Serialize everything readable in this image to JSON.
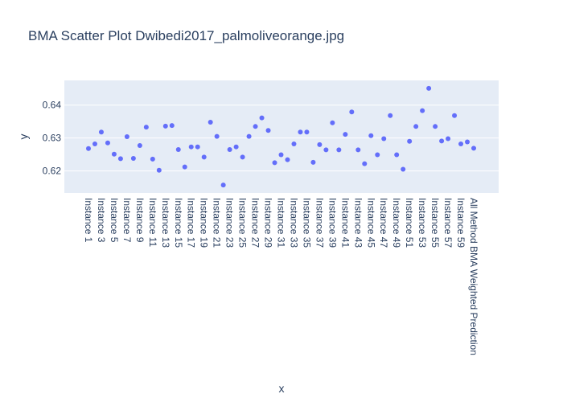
{
  "chart_data": {
    "type": "scatter",
    "title": "BMA Scatter Plot Dwibedi2017_palmoliveorange.jpg",
    "xlabel": "x",
    "ylabel": "y",
    "x": [
      "Instance 1",
      "Instance 2",
      "Instance 3",
      "Instance 4",
      "Instance 5",
      "Instance 6",
      "Instance 7",
      "Instance 8",
      "Instance 9",
      "Instance 10",
      "Instance 11",
      "Instance 12",
      "Instance 13",
      "Instance 14",
      "Instance 15",
      "Instance 16",
      "Instance 17",
      "Instance 18",
      "Instance 19",
      "Instance 20",
      "Instance 21",
      "Instance 22",
      "Instance 23",
      "Instance 24",
      "Instance 25",
      "Instance 26",
      "Instance 27",
      "Instance 28",
      "Instance 29",
      "Instance 30",
      "Instance 31",
      "Instance 32",
      "Instance 33",
      "Instance 34",
      "Instance 35",
      "Instance 36",
      "Instance 37",
      "Instance 38",
      "Instance 39",
      "Instance 40",
      "Instance 41",
      "Instance 42",
      "Instance 43",
      "Instance 44",
      "Instance 45",
      "Instance 46",
      "Instance 47",
      "Instance 48",
      "Instance 49",
      "Instance 50",
      "Instance 51",
      "Instance 52",
      "Instance 53",
      "Instance 54",
      "Instance 55",
      "Instance 56",
      "Instance 57",
      "Instance 58",
      "Instance 59",
      "Instance 60",
      "All Method BMA Weighted Prediction"
    ],
    "tick_labels": [
      "Instance 1",
      "Instance 3",
      "Instance 5",
      "Instance 7",
      "Instance 9",
      "Instance 11",
      "Instance 13",
      "Instance 15",
      "Instance 17",
      "Instance 19",
      "Instance 21",
      "Instance 23",
      "Instance 25",
      "Instance 27",
      "Instance 29",
      "Instance 31",
      "Instance 33",
      "Instance 35",
      "Instance 37",
      "Instance 39",
      "Instance 41",
      "Instance 43",
      "Instance 45",
      "Instance 47",
      "Instance 49",
      "Instance 51",
      "Instance 53",
      "Instance 55",
      "Instance 57",
      "Instance 59",
      "All Method BMA Weighted Prediction"
    ],
    "y": [
      0.6268,
      0.6282,
      0.6318,
      0.6285,
      0.6251,
      0.6237,
      0.6304,
      0.6238,
      0.6277,
      0.6333,
      0.6236,
      0.6202,
      0.6336,
      0.6338,
      0.6265,
      0.6212,
      0.6273,
      0.6273,
      0.6242,
      0.6348,
      0.6305,
      0.6157,
      0.6265,
      0.6273,
      0.6242,
      0.6305,
      0.6335,
      0.6361,
      0.6323,
      0.6225,
      0.6249,
      0.6234,
      0.6282,
      0.6318,
      0.6318,
      0.6226,
      0.628,
      0.6264,
      0.6346,
      0.6264,
      0.6311,
      0.6379,
      0.6264,
      0.6222,
      0.6307,
      0.6249,
      0.6298,
      0.6368,
      0.6249,
      0.6205,
      0.629,
      0.6335,
      0.6383,
      0.6451,
      0.6335,
      0.6291,
      0.6298,
      0.6368,
      0.6282,
      0.6288,
      0.6269
    ],
    "yticks": [
      0.62,
      0.63,
      0.64
    ],
    "ylim": [
      0.6133,
      0.6475
    ],
    "marker_color": "#636efa",
    "plot_bg": "#e5ecf6",
    "grid": true
  }
}
